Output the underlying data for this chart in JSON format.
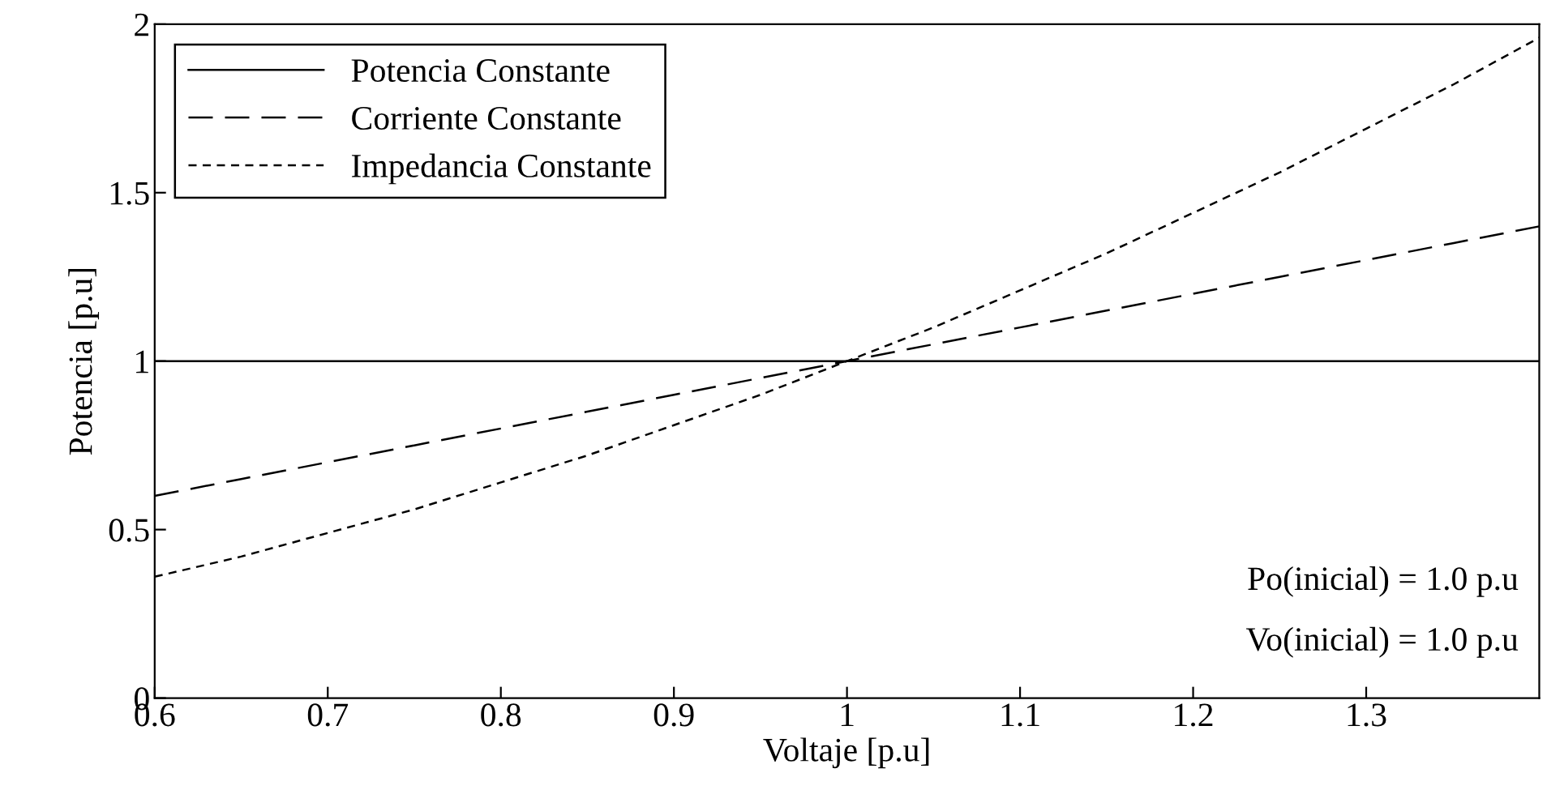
{
  "chart_data": {
    "type": "line",
    "xlabel": "Voltaje [p.u]",
    "ylabel": "Potencia [p.u]",
    "x": [
      0.6,
      0.65,
      0.7,
      0.75,
      0.8,
      0.85,
      0.9,
      0.95,
      1.0,
      1.05,
      1.1,
      1.15,
      1.2,
      1.25,
      1.3,
      1.35,
      1.4
    ],
    "series": [
      {
        "name": "Potencia Constante",
        "color": "#000000",
        "line_style": "solid",
        "values": [
          1,
          1,
          1,
          1,
          1,
          1,
          1,
          1,
          1,
          1,
          1,
          1,
          1,
          1,
          1,
          1,
          1
        ]
      },
      {
        "name": "Corriente Constante",
        "color": "#000000",
        "line_style": "dashed",
        "values": [
          0.6,
          0.65,
          0.7,
          0.75,
          0.8,
          0.85,
          0.9,
          0.95,
          1.0,
          1.05,
          1.1,
          1.15,
          1.2,
          1.25,
          1.3,
          1.35,
          1.4
        ]
      },
      {
        "name": "Impedancia Constante",
        "color": "#000000",
        "line_style": "dotted",
        "values": [
          0.36,
          0.42,
          0.49,
          0.56,
          0.64,
          0.72,
          0.81,
          0.9,
          1.0,
          1.1,
          1.21,
          1.32,
          1.44,
          1.56,
          1.69,
          1.82,
          1.96
        ]
      }
    ],
    "xlim": [
      0.6,
      1.4
    ],
    "ylim": [
      0,
      2
    ],
    "xticks": [
      0.6,
      0.7,
      0.8,
      0.9,
      {
        "value": 1.0,
        "label": "1"
      },
      1.1,
      1.2,
      1.3
    ],
    "yticks": [
      0,
      0.5,
      1,
      1.5,
      2
    ],
    "grid": false,
    "legend": "top left",
    "marker": "none",
    "annotations": [
      "Po(inicial) = 1.0 p.u",
      "Vo(inicial) = 1.0 p.u"
    ]
  }
}
